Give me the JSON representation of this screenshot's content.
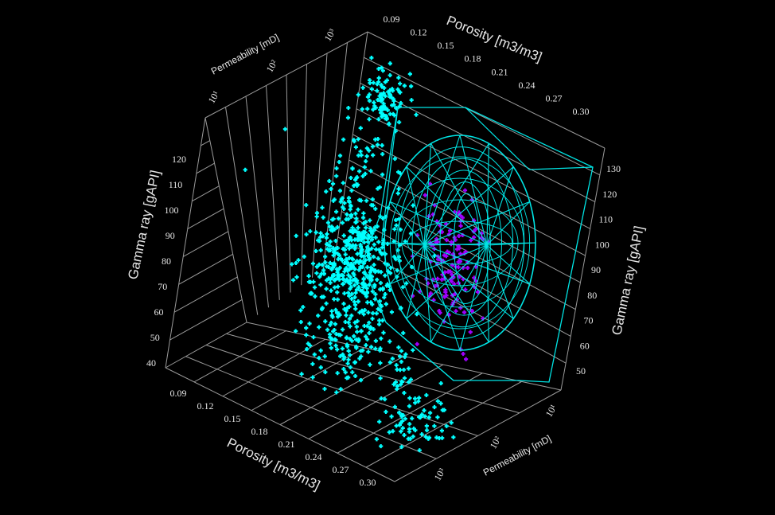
{
  "chart_data": {
    "type": "scatter",
    "projection": "3d",
    "axes": {
      "porosity": {
        "label": "Porosity [m3/m3]",
        "ticks": [
          "0.09",
          "0.12",
          "0.15",
          "0.18",
          "0.21",
          "0.24",
          "0.27",
          "0.30"
        ],
        "range": [
          0.09,
          0.3
        ]
      },
      "gamma_ray": {
        "label": "Gamma ray [gAPI]",
        "ticks_left": [
          "40",
          "50",
          "60",
          "70",
          "80",
          "90",
          "100",
          "110",
          "120"
        ],
        "ticks_right": [
          "50",
          "60",
          "70",
          "80",
          "90",
          "100",
          "110",
          "120",
          "130"
        ],
        "range": [
          40,
          130
        ]
      },
      "permeability": {
        "label": "Permeability [mD]",
        "ticks": [
          "10¹",
          "10²",
          "10³"
        ],
        "scale": "log"
      }
    },
    "grid": true,
    "series": [
      {
        "color": "#00ffff",
        "marker": "plus",
        "points_described": "main cluster, porosity 0.09-0.30, gamma ray 40-130"
      },
      {
        "color": "#a000ff",
        "marker": "plus",
        "points_described": "subset inside ellipsoid"
      }
    ],
    "overlays": [
      {
        "kind": "wireframe-ellipsoid",
        "color": "#00e5e5"
      },
      {
        "kind": "convex-hull",
        "color": "#00e5e5"
      }
    ]
  }
}
